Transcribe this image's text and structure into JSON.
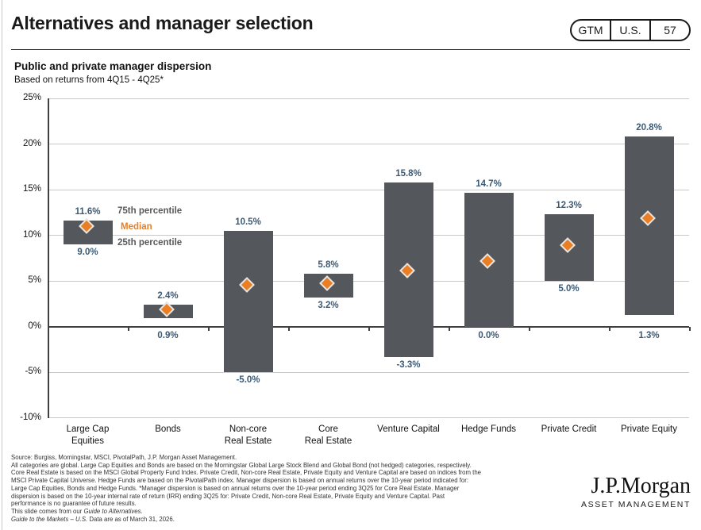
{
  "header": {
    "title": "Alternatives and manager selection",
    "pill": {
      "items": [
        "GTM",
        "U.S.",
        "57"
      ]
    }
  },
  "chart": {
    "title": "Public and private manager dispersion",
    "subtitle": "Based on returns from 4Q15 - 4Q25*",
    "legend": {
      "p75": "75th percentile",
      "median": "Median",
      "p25": "25th percentile"
    }
  },
  "chart_data": {
    "type": "bar",
    "subtype": "floating-range-bars-with-median-markers",
    "title": "Public and private manager dispersion",
    "subtitle": "Based on returns from 4Q15 - 4Q25*",
    "categories": [
      "Large Cap\nEquities",
      "Bonds",
      "Non-core\nReal Estate",
      "Core\nReal Estate",
      "Venture Capital",
      "Hedge Funds",
      "Private Credit",
      "Private Equity"
    ],
    "series": [
      {
        "name": "75th percentile",
        "values": [
          11.6,
          2.4,
          10.5,
          5.8,
          15.8,
          14.7,
          12.3,
          20.8
        ]
      },
      {
        "name": "Median (estimated from markers, unlabeled)",
        "values": [
          10.8,
          1.7,
          4.4,
          4.6,
          6.0,
          7.0,
          8.8,
          11.7
        ]
      },
      {
        "name": "25th percentile",
        "values": [
          9.0,
          0.9,
          -5.0,
          3.2,
          -3.3,
          0.0,
          5.0,
          1.3
        ]
      }
    ],
    "ylim": [
      -10,
      25
    ],
    "yticks": [
      25,
      20,
      15,
      10,
      5,
      0,
      -5,
      -10
    ],
    "ytick_labels": [
      "25%",
      "20%",
      "15%",
      "10%",
      "5%",
      "0%",
      "-5%",
      "-10%"
    ],
    "grid": true,
    "legend_position": "inside-top-left",
    "bar_color": "#54575c",
    "median_marker_color": "#eb7d22",
    "value_label_color": "#3c5a76"
  },
  "footer": {
    "lines": [
      [
        {
          "t": "Source: Burgiss, Morningstar, MSCI, PivotalPath, J.P. Morgan Asset Management."
        }
      ],
      [
        {
          "t": "All categories are global. Large Cap Equities and Bonds are based on the Morningstar Global Large Stock Blend and Global Bond (not hedged) categories, respectively."
        }
      ],
      [
        {
          "t": "Core Real Estate is based on the MSCI Global Property Fund Index. Private Credit, Non-core Real Estate, Private Equity and Venture Capital are based on indices from the"
        }
      ],
      [
        {
          "t": "MSCI Private Capital Universe. Hedge Funds are based on the PivotalPath index. Manager dispersion is based on annual returns over the 10-year period indicated for:"
        }
      ],
      [
        {
          "t": "Large Cap Equities, Bonds and Hedge Funds. *Manager dispersion is based on annual returns over the 10-year period ending 3Q25 for Core Real Estate. Manager"
        }
      ],
      [
        {
          "t": "dispersion is based on the 10-year internal rate of return (IRR) ending 3Q25 for: Private Credit, Non-core Real Estate, Private Equity and Venture Capital. Past"
        }
      ],
      [
        {
          "t": "performance is no guarantee of future results."
        }
      ],
      [
        {
          "t": "This slide comes from our "
        },
        {
          "t": "Guide to Alternatives",
          "i": true
        },
        {
          "t": "."
        }
      ],
      [
        {
          "t": "Guide to the Markets – U.S.",
          "i": true
        },
        {
          "t": " Data are as of March 31, 2026."
        }
      ]
    ]
  },
  "logo": {
    "wordmark": "J.P.Morgan",
    "subtitle": "ASSET MANAGEMENT"
  }
}
